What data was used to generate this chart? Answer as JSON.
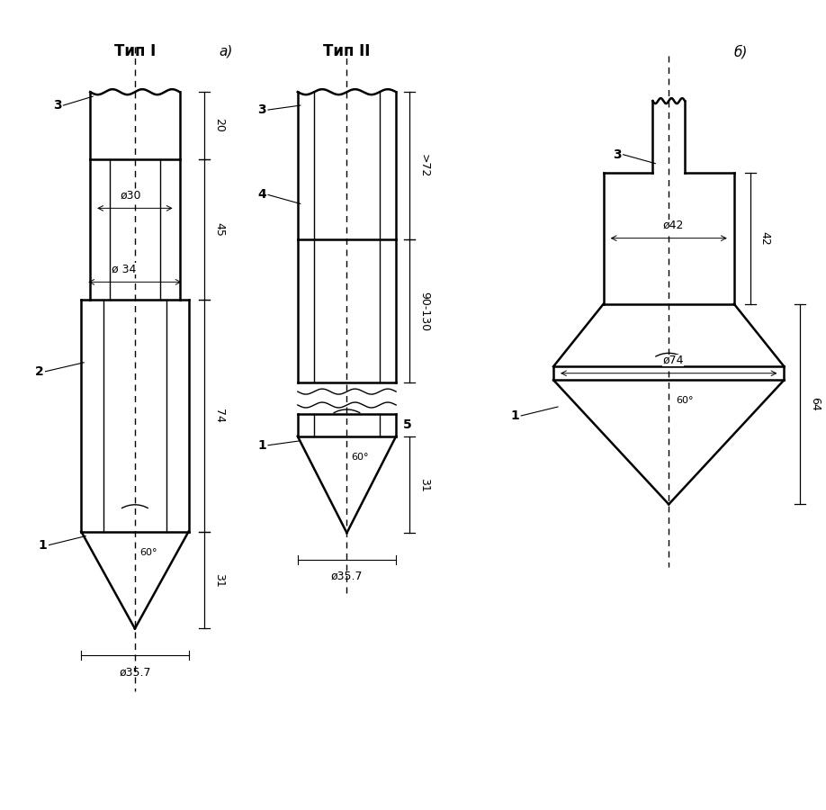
{
  "title_I": "Тип I",
  "title_II": "Тип II",
  "label_a": "а)",
  "label_b": "б)",
  "bg_color": "#ffffff",
  "lc": "#000000",
  "lw_thick": 1.8,
  "lw_thin": 1.0,
  "lw_dim": 0.8,
  "fs_title": 12,
  "fs_label": 11,
  "fs_dim": 9,
  "fs_num": 10
}
